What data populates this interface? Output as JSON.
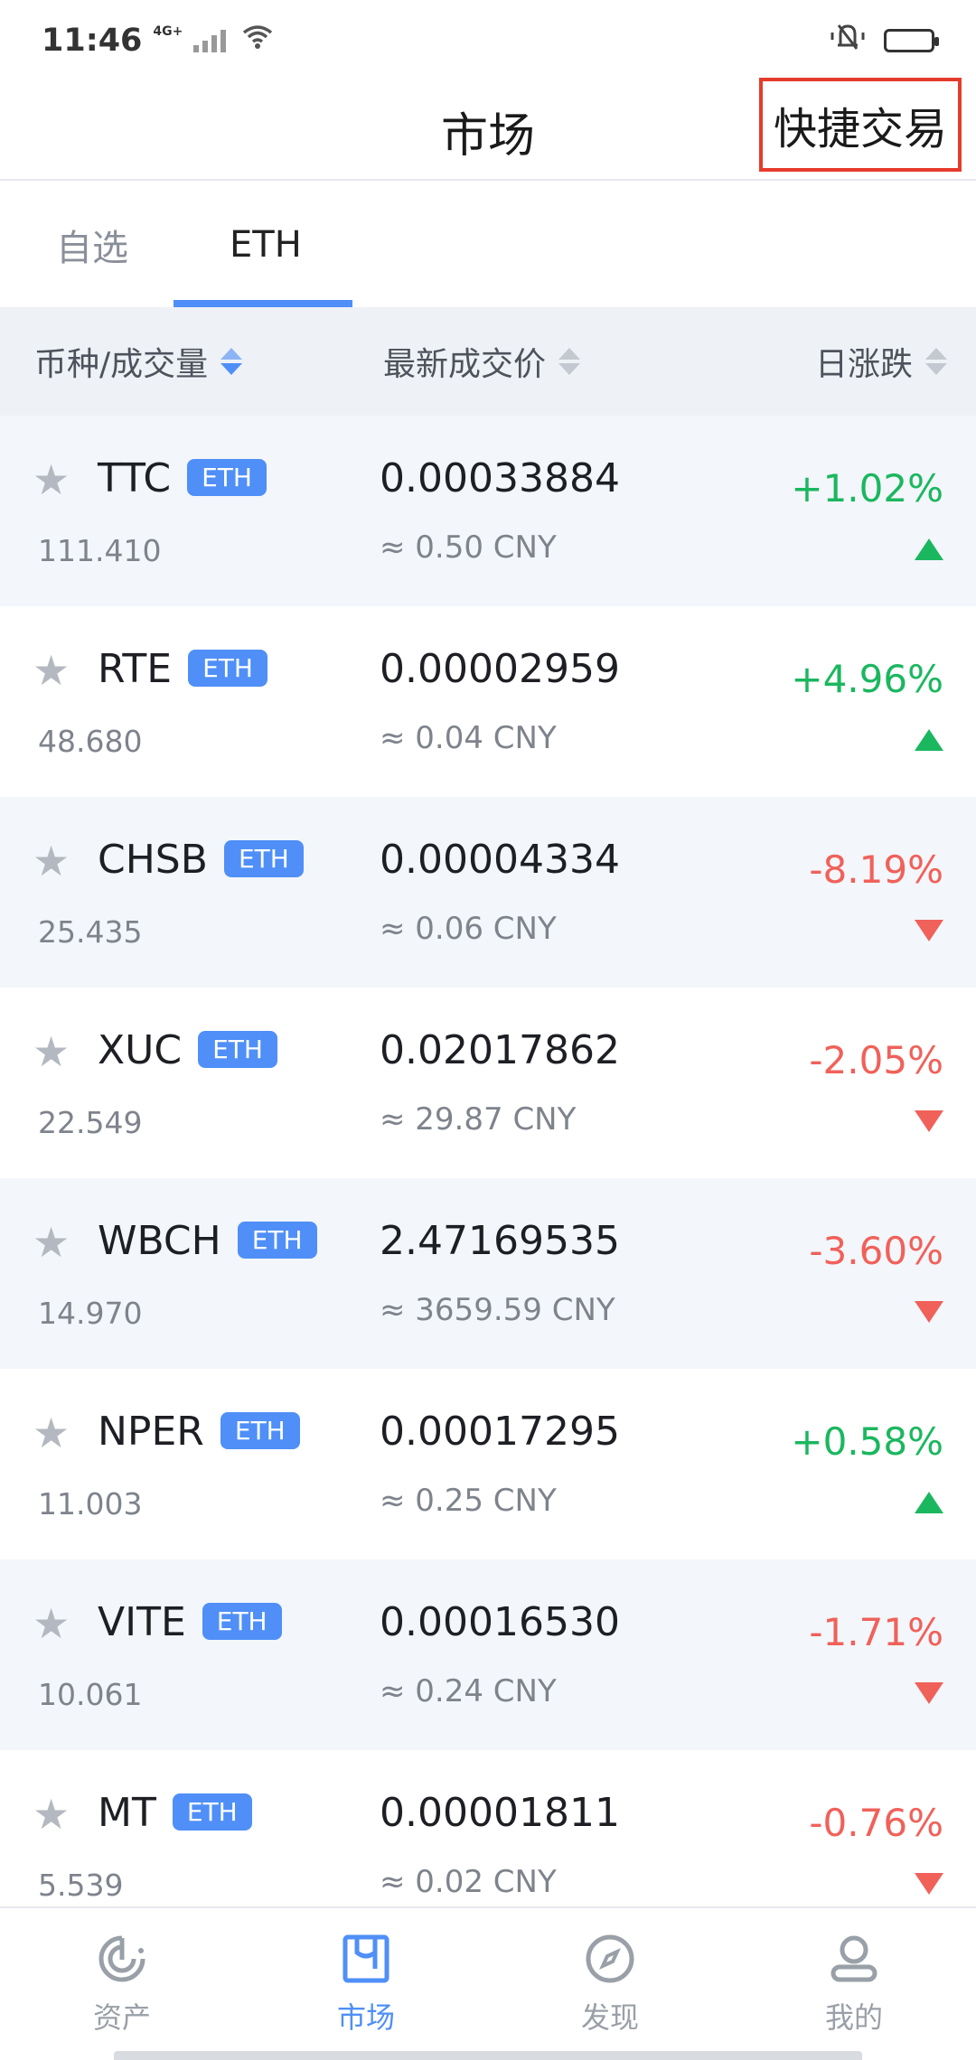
{
  "status_bar": {
    "time": "11:46",
    "network": "4G+"
  },
  "header": {
    "title": "市场",
    "quick_trade_label": "快捷交易"
  },
  "tabs": [
    {
      "label": "自选",
      "active": false
    },
    {
      "label": "ETH",
      "active": true
    }
  ],
  "table_header": {
    "coin_volume": "币种/成交量",
    "latest_price": "最新成交价",
    "daily_change": "日涨跌"
  },
  "rows": [
    {
      "symbol": "TTC",
      "pair": "ETH",
      "volume": "111.410",
      "price": "0.00033884",
      "cny": "≈ 0.50 CNY",
      "change": "+1.02%",
      "direction": "up"
    },
    {
      "symbol": "RTE",
      "pair": "ETH",
      "volume": "48.680",
      "price": "0.00002959",
      "cny": "≈ 0.04 CNY",
      "change": "+4.96%",
      "direction": "up"
    },
    {
      "symbol": "CHSB",
      "pair": "ETH",
      "volume": "25.435",
      "price": "0.00004334",
      "cny": "≈ 0.06 CNY",
      "change": "-8.19%",
      "direction": "down"
    },
    {
      "symbol": "XUC",
      "pair": "ETH",
      "volume": "22.549",
      "price": "0.02017862",
      "cny": "≈ 29.87 CNY",
      "change": "-2.05%",
      "direction": "down"
    },
    {
      "symbol": "WBCH",
      "pair": "ETH",
      "volume": "14.970",
      "price": "2.47169535",
      "cny": "≈ 3659.59 CNY",
      "change": "-3.60%",
      "direction": "down"
    },
    {
      "symbol": "NPER",
      "pair": "ETH",
      "volume": "11.003",
      "price": "0.00017295",
      "cny": "≈ 0.25 CNY",
      "change": "+0.58%",
      "direction": "up"
    },
    {
      "symbol": "VITE",
      "pair": "ETH",
      "volume": "10.061",
      "price": "0.00016530",
      "cny": "≈ 0.24 CNY",
      "change": "-1.71%",
      "direction": "down"
    },
    {
      "symbol": "MT",
      "pair": "ETH",
      "volume": "5.539",
      "price": "0.00001811",
      "cny": "≈ 0.02 CNY",
      "change": "-0.76%",
      "direction": "down"
    }
  ],
  "bottom_nav": [
    {
      "label": "资产",
      "icon": "assets-icon",
      "active": false
    },
    {
      "label": "市场",
      "icon": "market-icon",
      "active": true
    },
    {
      "label": "发现",
      "icon": "discover-compass-icon",
      "active": false
    },
    {
      "label": "我的",
      "icon": "profile-icon",
      "active": false
    }
  ],
  "colors": {
    "accent": "#4f8ff7",
    "up": "#1bb75f",
    "down": "#f0615a",
    "highlight_box": "#e53b2c"
  }
}
